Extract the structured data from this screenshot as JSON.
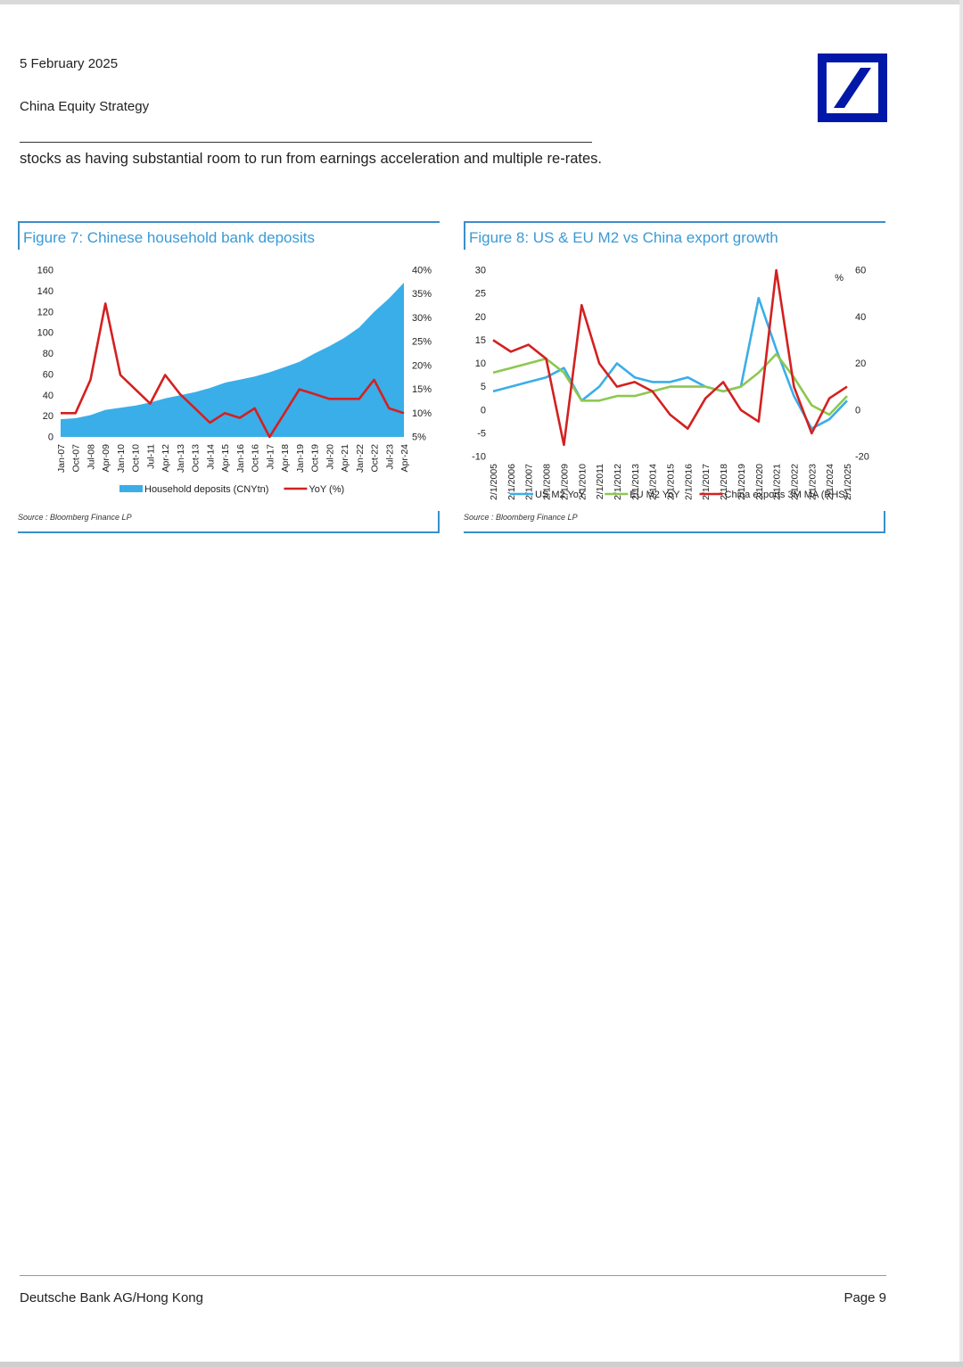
{
  "header": {
    "date": "5 February 2025",
    "section": "China Equity Strategy"
  },
  "body": {
    "paragraph": "stocks as having substantial room to run from earnings acceleration and multiple re-rates."
  },
  "figure7": {
    "title": "Figure 7: Chinese household bank deposits",
    "source": "Source : Bloomberg Finance LP"
  },
  "figure8": {
    "title": "Figure 8: US & EU M2 vs China export growth",
    "source": "Source : Bloomberg Finance LP"
  },
  "footer": {
    "left": "Deutsche Bank AG/Hong Kong",
    "right": "Page 9"
  },
  "colors": {
    "accent": "#3a9ad6",
    "logo_blue": "#0018a8",
    "deposit_fill": "#3aaee8",
    "yoy_red": "#d42020",
    "us_m2": "#3aaee8",
    "eu_m2": "#8cc850",
    "china_exports": "#d42020"
  },
  "chart_data": [
    {
      "type": "area",
      "title": "",
      "categories": [
        "Jan-07",
        "Oct-07",
        "Jul-08",
        "Apr-09",
        "Jan-10",
        "Oct-10",
        "Jul-11",
        "Apr-12",
        "Jan-13",
        "Oct-13",
        "Jul-14",
        "Apr-15",
        "Jan-16",
        "Oct-16",
        "Jul-17",
        "Apr-18",
        "Jan-19",
        "Oct-19",
        "Jul-20",
        "Apr-21",
        "Jan-22",
        "Oct-22",
        "Jul-23",
        "Apr-24"
      ],
      "left_axis": {
        "ticks": [
          "0",
          "20",
          "40",
          "60",
          "80",
          "100",
          "120",
          "140",
          "160"
        ],
        "ylim": [
          0,
          160
        ]
      },
      "right_axis": {
        "ticks": [
          "5%",
          "10%",
          "15%",
          "20%",
          "25%",
          "30%",
          "35%",
          "40%"
        ],
        "ylim": [
          5,
          40
        ]
      },
      "series": [
        {
          "name": "Household deposits (CNYtn)",
          "type": "area",
          "axis": "left",
          "values": [
            17,
            18,
            21,
            26,
            28,
            30,
            33,
            37,
            40,
            43,
            47,
            52,
            55,
            58,
            62,
            67,
            72,
            80,
            87,
            95,
            105,
            120,
            133,
            148
          ]
        },
        {
          "name": "YoY (%)",
          "type": "line",
          "axis": "right",
          "values": [
            10,
            10,
            17,
            33,
            18,
            15,
            12,
            18,
            14,
            11,
            8,
            10,
            9,
            11,
            5,
            10,
            15,
            14,
            13,
            13,
            13,
            17,
            11,
            10
          ]
        }
      ],
      "legend": "bottom"
    },
    {
      "type": "line",
      "title": "",
      "categories": [
        "2/1/2005",
        "2/1/2006",
        "2/1/2007",
        "2/1/2008",
        "2/1/2009",
        "2/1/2010",
        "2/1/2011",
        "2/1/2012",
        "2/1/2013",
        "2/1/2014",
        "2/1/2015",
        "2/1/2016",
        "2/1/2017",
        "2/1/2018",
        "2/1/2019",
        "2/1/2020",
        "2/1/2021",
        "2/1/2022",
        "2/1/2023",
        "2/1/2024",
        "2/1/2025"
      ],
      "left_axis": {
        "ticks": [
          "-10",
          "-5",
          "0",
          "5",
          "10",
          "15",
          "20",
          "25",
          "30"
        ],
        "ylim": [
          -10,
          30
        ]
      },
      "right_axis": {
        "ticks": [
          "-20",
          "0",
          "20",
          "40",
          "60"
        ],
        "ylim": [
          -20,
          60
        ],
        "unit": "%"
      },
      "series": [
        {
          "name": "US M2 YoY",
          "axis": "left",
          "values": [
            4,
            5,
            6,
            7,
            9,
            2,
            5,
            10,
            7,
            6,
            6,
            7,
            5,
            4,
            5,
            24,
            13,
            3,
            -4,
            -2,
            2
          ]
        },
        {
          "name": "EU M2 YoY",
          "axis": "left",
          "values": [
            8,
            9,
            10,
            11,
            8,
            2,
            2,
            3,
            3,
            4,
            5,
            5,
            5,
            4,
            5,
            8,
            12,
            7,
            1,
            -1,
            3
          ]
        },
        {
          "name": "China exports 3M MA (RHS)",
          "axis": "right",
          "values": [
            30,
            25,
            28,
            22,
            -15,
            45,
            20,
            10,
            12,
            8,
            -2,
            -8,
            5,
            12,
            0,
            -5,
            60,
            10,
            -10,
            5,
            10
          ]
        }
      ],
      "legend": "bottom"
    }
  ]
}
